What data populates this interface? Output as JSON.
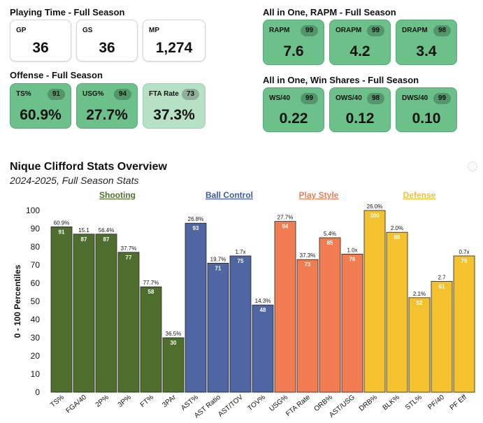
{
  "playing_time": {
    "title": "Playing Time - Full Season",
    "cards": [
      {
        "label": "GP",
        "value": "36"
      },
      {
        "label": "GS",
        "value": "36"
      },
      {
        "label": "MP",
        "value": "1,274"
      }
    ]
  },
  "offense": {
    "title": "Offense - Full Season",
    "cards": [
      {
        "label": "TS%",
        "value": "60.9%",
        "badge": "91"
      },
      {
        "label": "USG%",
        "value": "27.7%",
        "badge": "94"
      },
      {
        "label": "FTA Rate",
        "value": "37.3%",
        "badge": "73"
      }
    ]
  },
  "rapm": {
    "title": "All in One, RAPM - Full Season",
    "cards": [
      {
        "label": "RAPM",
        "value": "7.6",
        "badge": "99"
      },
      {
        "label": "ORAPM",
        "value": "4.2",
        "badge": "99"
      },
      {
        "label": "DRAPM",
        "value": "3.4",
        "badge": "98"
      }
    ]
  },
  "win_shares": {
    "title": "All in One, Win Shares - Full Season",
    "cards": [
      {
        "label": "WS/40",
        "value": "0.22",
        "badge": "99"
      },
      {
        "label": "OWS/40",
        "value": "0.12",
        "badge": "98"
      },
      {
        "label": "DWS/40",
        "value": "0.10",
        "badge": "99"
      }
    ]
  },
  "chart_data": {
    "type": "bar",
    "title": "Nique Clifford Stats Overview",
    "subtitle": "2024-2025, Full Season Stats",
    "ylabel": "0 - 100 Percentiles",
    "ylim": [
      0,
      100
    ],
    "yticks": [
      0,
      10,
      20,
      30,
      40,
      50,
      60,
      70,
      80,
      90,
      100
    ],
    "grid": false,
    "groups": [
      {
        "name": "Shooting",
        "color": "#4e6e2e",
        "label_color": "#4e6e2e",
        "categories": [
          "TS%",
          "FGA/40",
          "2P%",
          "3P%",
          "FT%",
          "3PAr"
        ],
        "values": [
          91,
          87,
          87,
          77,
          58,
          30
        ],
        "stat_labels": [
          "60.9%",
          "15.1",
          "56.4%",
          "37.7%",
          "77.7%",
          "36.5%"
        ]
      },
      {
        "name": "Ball Control",
        "color": "#4f66a3",
        "label_color": "#3d5aa8",
        "categories": [
          "AST%",
          "AST Ratio",
          "AST/TOV",
          "TOV%"
        ],
        "values": [
          93,
          71,
          75,
          48
        ],
        "stat_labels": [
          "26.8%",
          "19.7%",
          "1.7x",
          "14.3%"
        ]
      },
      {
        "name": "Play Style",
        "color": "#f07d52",
        "label_color": "#f07d52",
        "categories": [
          "USG%",
          "FTA Rate",
          "ORB%",
          "AST/USG"
        ],
        "values": [
          94,
          73,
          85,
          76
        ],
        "stat_labels": [
          "27.7%",
          "37.3%",
          "5.4%",
          "1.0x"
        ]
      },
      {
        "name": "Defense",
        "color": "#f4c22f",
        "label_color": "#f4c22f",
        "categories": [
          "DRB%",
          "BLK%",
          "STL%",
          "PF/40",
          "PF Eff"
        ],
        "values": [
          100,
          88,
          52,
          61,
          75
        ],
        "stat_labels": [
          "26.0%",
          "2.0%",
          "2.1%",
          "2.7",
          "0.7x"
        ]
      }
    ]
  }
}
